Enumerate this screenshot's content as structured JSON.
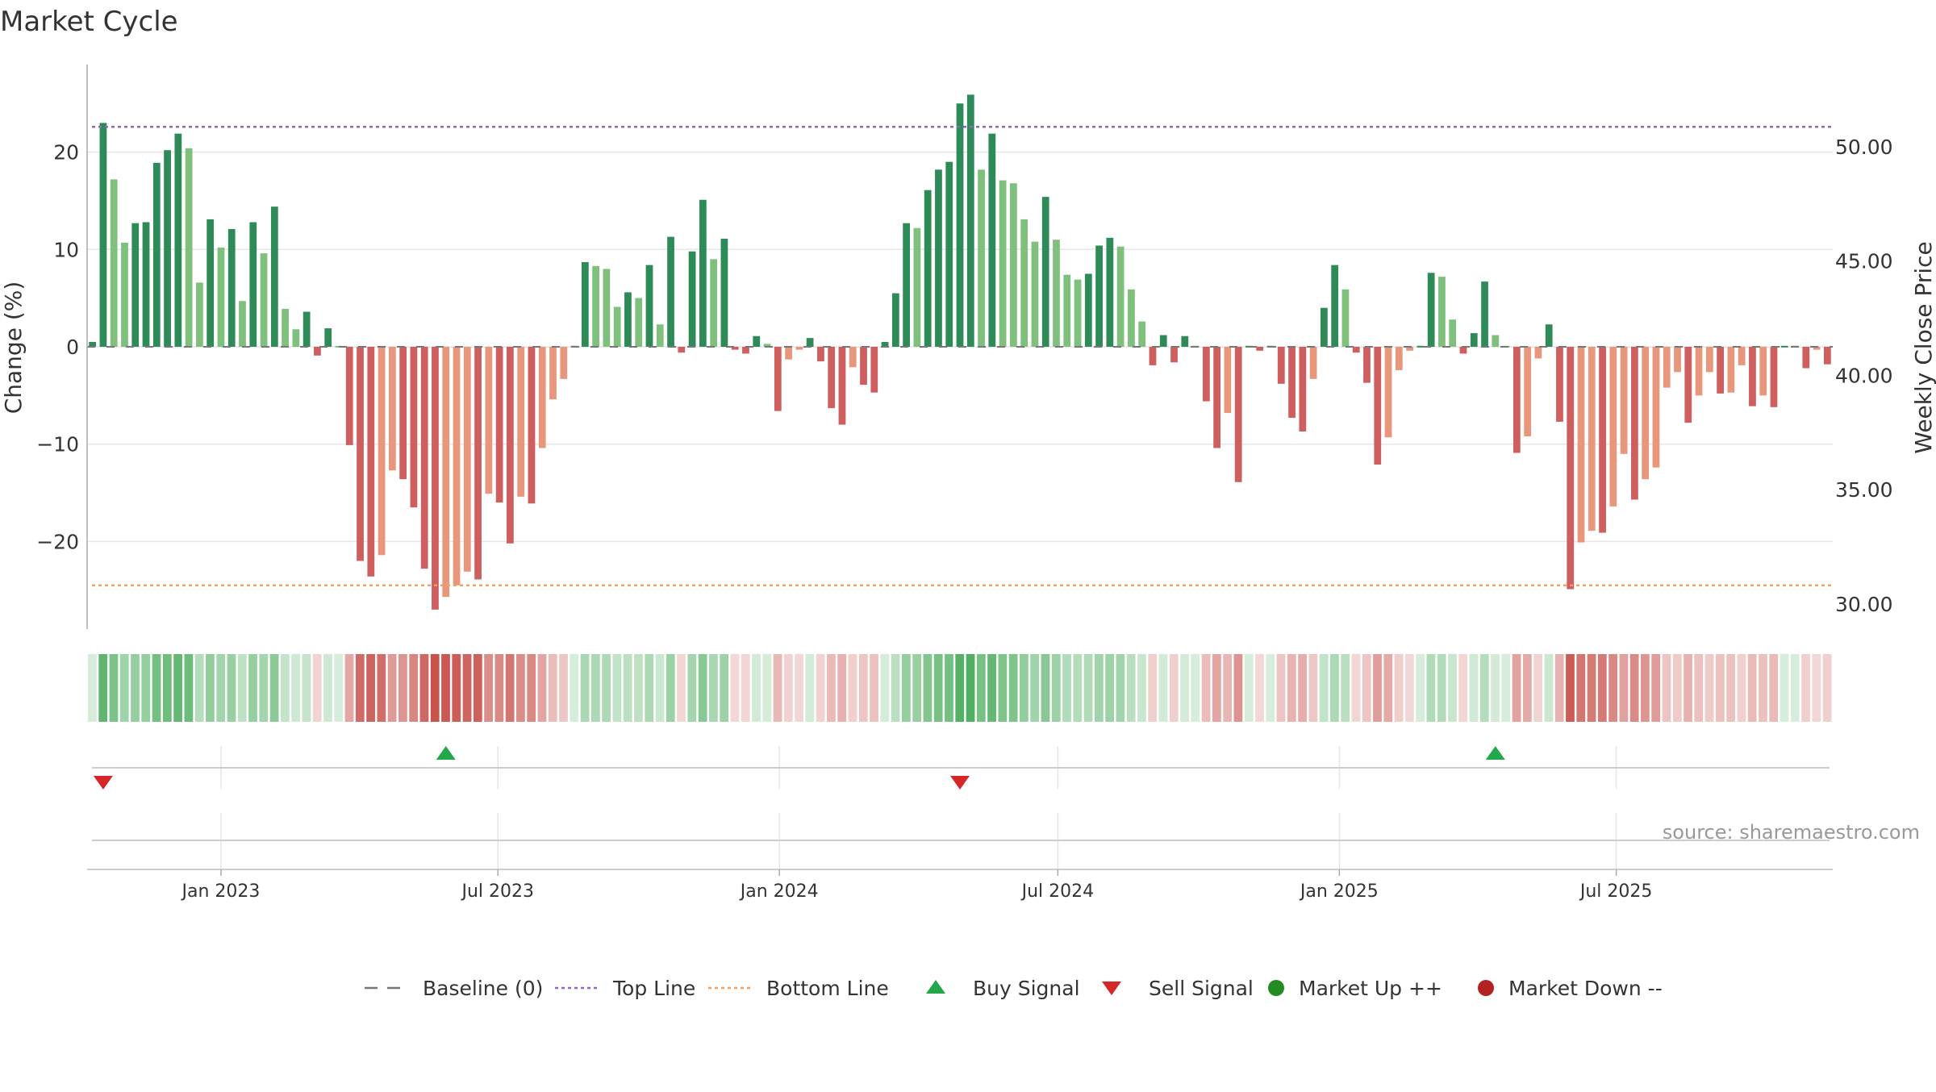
{
  "title": "Market Cycle",
  "source": "source: sharemaestro.com",
  "colors": {
    "bar_up_strong": "#2e8a57",
    "bar_up_light": "#7fc07d",
    "bar_down_strong": "#cf5e5e",
    "bar_down_light": "#e8977c",
    "baseline": "#777777",
    "top_line": "#9467bd",
    "bottom_line": "#f0a060",
    "buy_signal": "#22a84a",
    "sell_signal": "#d62728",
    "market_up": "#228b22",
    "market_down": "#b22222",
    "grid": "#e6e6e6",
    "heat_green": "#4aac5c",
    "heat_red": "#c8524c"
  },
  "chart_data": {
    "type": "bar",
    "title": "Market Cycle",
    "ylabel": "Change (%)",
    "y2label": "Weekly Close Price",
    "ylim": [
      -29,
      29
    ],
    "y2lim": [
      28.9,
      53.6
    ],
    "yticks": [
      "20",
      "10",
      "0",
      "−10",
      "−20"
    ],
    "yticks_values": [
      20,
      10,
      0,
      -10,
      -20
    ],
    "y2ticks": [
      "50.00",
      "45.00",
      "40.00",
      "35.00",
      "30.00"
    ],
    "y2ticks_values": [
      50,
      45,
      40,
      35,
      30
    ],
    "x_start": "2022-10-09",
    "xticks": [
      "Jan 2023",
      "Jul 2023",
      "Jan 2024",
      "Jul 2024",
      "Jan 2025",
      "Jul 2025"
    ],
    "xticks_dates": [
      "2023-01-01",
      "2023-07-01",
      "2024-01-01",
      "2024-07-01",
      "2025-01-01",
      "2025-07-01"
    ],
    "top_line": 22.6,
    "bottom_line": -24.5,
    "values": [
      0.5,
      23.0,
      17.2,
      10.7,
      12.7,
      12.8,
      18.9,
      20.2,
      21.9,
      20.4,
      6.6,
      13.1,
      10.2,
      12.1,
      4.7,
      12.8,
      9.6,
      14.4,
      3.9,
      1.8,
      3.6,
      -0.9,
      1.9,
      0.1,
      -10.1,
      -22.0,
      -23.6,
      -21.4,
      -12.7,
      -13.6,
      -16.5,
      -22.8,
      -27.0,
      -25.7,
      -24.5,
      -23.1,
      -23.9,
      -15.1,
      -16.0,
      -20.2,
      -15.4,
      -16.1,
      -10.4,
      -5.4,
      -3.3,
      0.1,
      8.7,
      8.3,
      8.0,
      4.1,
      5.6,
      5.0,
      8.4,
      2.3,
      11.3,
      -0.6,
      9.8,
      15.1,
      9.0,
      11.1,
      -0.3,
      -0.7,
      1.1,
      0.3,
      -6.6,
      -1.3,
      -0.3,
      0.9,
      -1.5,
      -6.3,
      -8.0,
      -2.1,
      -3.9,
      -4.7,
      0.5,
      5.5,
      12.7,
      12.2,
      16.1,
      18.2,
      19.0,
      25.0,
      25.9,
      18.2,
      21.9,
      17.1,
      16.8,
      13.1,
      10.8,
      15.4,
      11.0,
      7.4,
      6.9,
      7.5,
      10.4,
      11.2,
      10.3,
      5.9,
      2.6,
      -1.9,
      1.2,
      -1.6,
      1.1,
      0.1,
      -5.6,
      -10.4,
      -6.8,
      -13.9,
      0.1,
      -0.4,
      0.1,
      -3.8,
      -7.3,
      -8.7,
      -3.3,
      4.0,
      8.4,
      5.9,
      -0.6,
      -3.7,
      -12.1,
      -9.3,
      -2.4,
      -0.4,
      0.1,
      7.6,
      7.2,
      2.8,
      -0.7,
      1.4,
      6.7,
      1.2,
      0.1,
      -10.9,
      -9.2,
      -1.2,
      2.3,
      -7.7,
      -24.9,
      -20.1,
      -18.9,
      -19.1,
      -16.4,
      -11.0,
      -15.7,
      -13.6,
      -12.4,
      -4.2,
      -2.6,
      -7.8,
      -5.0,
      -2.6,
      -4.8,
      -4.7,
      -1.9,
      -6.1,
      -5.0,
      -6.2,
      0.1,
      0.1,
      -2.2,
      -0.3,
      -1.8
    ],
    "buy_signals": [
      "2023-05-28",
      "2025-04-13"
    ],
    "sell_signals": [
      "2022-10-16",
      "2024-04-28"
    ],
    "legend_position": "bottom",
    "legend": [
      {
        "label": "Baseline (0)",
        "marker": "dash"
      },
      {
        "label": "Top Line",
        "marker": "dotted-purple"
      },
      {
        "label": "Bottom Line",
        "marker": "dotted-orange"
      },
      {
        "label": "Buy Signal",
        "marker": "triangle-up"
      },
      {
        "label": "Sell Signal",
        "marker": "triangle-down"
      },
      {
        "label": "Market Up ++",
        "marker": "circle-green"
      },
      {
        "label": "Market Down --",
        "marker": "circle-red"
      }
    ],
    "grid": true
  }
}
